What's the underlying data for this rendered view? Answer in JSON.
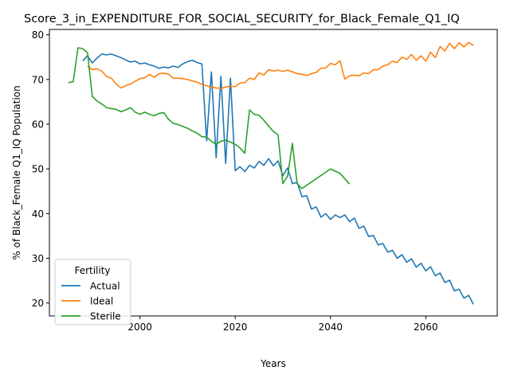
{
  "chart_data": {
    "type": "line",
    "title": "Score_3_in_EXPENDITURE_FOR_SOCIAL_SECURITY_for_Black_Female_Q1_IQ",
    "xlabel": "Years",
    "ylabel": "% of Black_Female Q1_IQ Population",
    "xlim": [
      1981,
      2075
    ],
    "ylim": [
      17.1,
      81.2
    ],
    "xticks": [
      2000,
      2020,
      2040,
      2060
    ],
    "yticks": [
      20,
      30,
      40,
      50,
      60,
      70,
      80
    ],
    "grid": false,
    "legend": {
      "title": "Fertility",
      "placement": "lower-left"
    },
    "series": [
      {
        "name": "Actual",
        "color": "#1f77b4",
        "x": [
          1988,
          1989,
          1990,
          1991,
          1992,
          1993,
          1994,
          1995,
          1996,
          1997,
          1998,
          1999,
          2000,
          2001,
          2002,
          2003,
          2004,
          2005,
          2006,
          2007,
          2008,
          2009,
          2010,
          2011,
          2012,
          2013,
          2014,
          2015,
          2016,
          2017,
          2018,
          2019,
          2020,
          2021,
          2022,
          2023,
          2024,
          2025,
          2026,
          2027,
          2028,
          2029,
          2030,
          2031,
          2032,
          2033,
          2034,
          2035,
          2036,
          2037,
          2038,
          2039,
          2040,
          2041,
          2042,
          2043,
          2044,
          2045,
          2046,
          2047,
          2048,
          2049,
          2050,
          2051,
          2052,
          2053,
          2054,
          2055,
          2056,
          2057,
          2058,
          2059,
          2060,
          2061,
          2062,
          2063,
          2064,
          2065,
          2066,
          2067,
          2068,
          2069,
          2070
        ],
        "y": [
          74.2,
          75.3,
          73.7,
          74.8,
          75.7,
          75.5,
          75.7,
          75.3,
          74.9,
          74.4,
          73.9,
          74.1,
          73.5,
          73.7,
          73.3,
          73.0,
          72.5,
          72.8,
          72.6,
          73.0,
          72.7,
          73.5,
          74.0,
          74.3,
          73.8,
          73.5,
          56.3,
          71.7,
          52.5,
          70.7,
          51.2,
          70.3,
          49.6,
          50.5,
          49.4,
          50.8,
          50.2,
          51.7,
          50.8,
          52.3,
          50.7,
          51.8,
          48.5,
          50.2,
          46.7,
          47.0,
          43.8,
          44.0,
          41.0,
          41.5,
          39.2,
          40.0,
          38.7,
          39.7,
          39.1,
          39.7,
          38.2,
          39.0,
          36.7,
          37.2,
          34.9,
          35.1,
          33.0,
          33.3,
          31.4,
          31.8,
          30.0,
          30.8,
          29.1,
          29.9,
          28.0,
          28.9,
          27.2,
          28.1,
          26.1,
          26.7,
          24.6,
          25.1,
          22.7,
          23.1,
          21.1,
          21.7,
          19.7
        ]
      },
      {
        "name": "Ideal",
        "color": "#ff7f0e",
        "x": [
          1989,
          1990,
          1991,
          1992,
          1993,
          1994,
          1995,
          1996,
          1997,
          1998,
          1999,
          2000,
          2001,
          2002,
          2003,
          2004,
          2005,
          2006,
          2007,
          2008,
          2009,
          2010,
          2011,
          2012,
          2013,
          2014,
          2015,
          2016,
          2017,
          2018,
          2019,
          2020,
          2021,
          2022,
          2023,
          2024,
          2025,
          2026,
          2027,
          2028,
          2029,
          2030,
          2031,
          2032,
          2033,
          2034,
          2035,
          2036,
          2037,
          2038,
          2039,
          2040,
          2041,
          2042,
          2043,
          2044,
          2045,
          2046,
          2047,
          2048,
          2049,
          2050,
          2051,
          2052,
          2053,
          2054,
          2055,
          2056,
          2057,
          2058,
          2059,
          2060,
          2061,
          2062,
          2063,
          2064,
          2065,
          2066,
          2067,
          2068,
          2069,
          2070
        ],
        "y": [
          73.0,
          72.2,
          72.4,
          71.9,
          70.7,
          70.3,
          69.0,
          68.1,
          68.6,
          69.0,
          69.6,
          70.2,
          70.4,
          71.1,
          70.5,
          71.3,
          71.4,
          71.2,
          70.3,
          70.3,
          70.2,
          70.0,
          69.7,
          69.4,
          68.9,
          68.6,
          68.3,
          68.1,
          68.0,
          68.3,
          68.5,
          68.4,
          69.2,
          69.3,
          70.3,
          70.0,
          71.5,
          71.0,
          72.2,
          71.9,
          72.1,
          71.8,
          72.1,
          71.7,
          71.3,
          71.2,
          70.9,
          71.3,
          71.6,
          72.5,
          72.6,
          73.6,
          73.3,
          74.2,
          70.1,
          70.8,
          71.0,
          70.8,
          71.5,
          71.3,
          72.2,
          72.2,
          73.0,
          73.3,
          74.1,
          73.8,
          75.0,
          74.5,
          75.6,
          74.3,
          75.3,
          74.1,
          76.1,
          74.9,
          77.4,
          76.4,
          78.1,
          76.9,
          78.2,
          77.3,
          78.3,
          77.6
        ]
      },
      {
        "name": "Sterile",
        "color": "#2ca02c",
        "x": [
          1985,
          1986,
          1987,
          1988,
          1989,
          1990,
          1991,
          1992,
          1993,
          1994,
          1995,
          1996,
          1997,
          1998,
          1999,
          2000,
          2001,
          2002,
          2003,
          2004,
          2005,
          2006,
          2007,
          2008,
          2009,
          2010,
          2011,
          2012,
          2013,
          2014,
          2015,
          2016,
          2017,
          2018,
          2019,
          2020,
          2021,
          2022,
          2023,
          2024,
          2025,
          2026,
          2027,
          2028,
          2029,
          2030,
          2031,
          2032,
          2033,
          2034,
          2040,
          2042,
          2044
        ],
        "y": [
          69.3,
          69.5,
          77.1,
          76.9,
          76.0,
          66.2,
          65.2,
          64.5,
          63.7,
          63.5,
          63.3,
          62.8,
          63.2,
          63.7,
          62.7,
          62.2,
          62.7,
          62.2,
          61.9,
          62.4,
          62.6,
          61.1,
          60.2,
          59.9,
          59.5,
          59.1,
          58.5,
          58.0,
          57.2,
          57.1,
          56.2,
          55.5,
          56.2,
          56.4,
          56.0,
          55.5,
          54.7,
          53.5,
          63.2,
          62.2,
          62.0,
          60.9,
          59.6,
          58.4,
          57.6,
          46.7,
          48.4,
          55.7,
          46.7,
          45.6,
          50.0,
          49.0,
          46.6
        ]
      }
    ]
  }
}
